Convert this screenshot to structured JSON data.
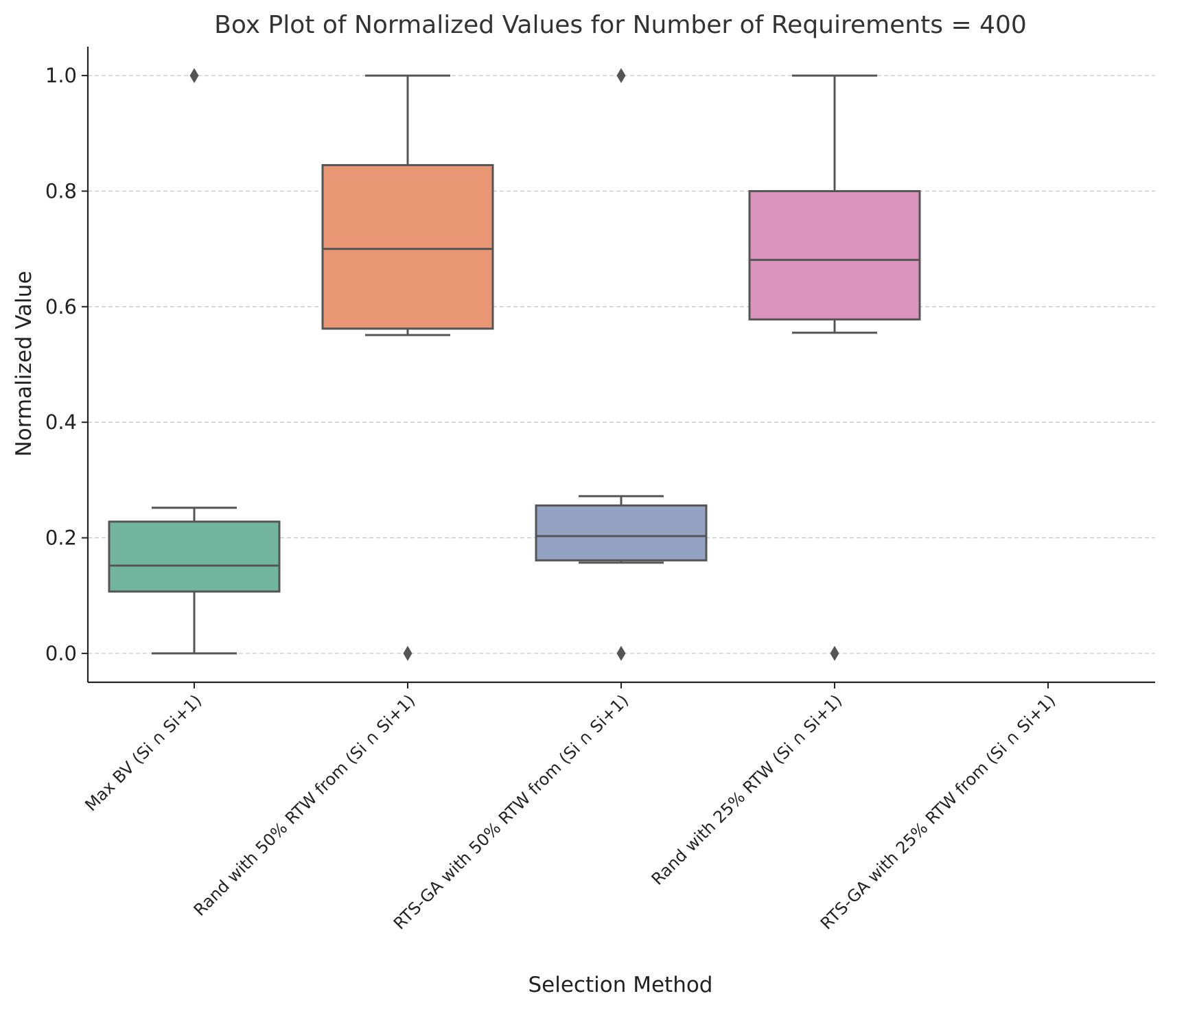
{
  "chart_data": {
    "type": "box",
    "title": "Box Plot of Normalized Values for Number of Requirements = 400",
    "xlabel": "Selection Method",
    "ylabel": "Normalized Value",
    "ylim": [
      -0.05,
      1.05
    ],
    "yticks": [
      0.0,
      0.2,
      0.4,
      0.6,
      0.8,
      1.0
    ],
    "ytick_labels": [
      "0.0",
      "0.2",
      "0.4",
      "0.6",
      "0.8",
      "1.0"
    ],
    "grid": "y-dashed",
    "categories": [
      "Max BV (Si ∩ Si+1)",
      "Rand with 50% RTW from (Si ∩ Si+1)",
      "RTS-GA with 50% RTW from (Si ∩ Si+1)",
      "Rand with 25% RTW (Si ∩ Si+1)",
      "RTS-GA with 25% RTW from (Si ∩ Si+1)"
    ],
    "boxes": [
      {
        "whisker_low": 0.0,
        "q1": 0.107,
        "median": 0.152,
        "q3": 0.228,
        "whisker_high": 0.252,
        "outliers": [
          1.0
        ],
        "color": "#72b59e"
      },
      {
        "whisker_low": 0.551,
        "q1": 0.562,
        "median": 0.7,
        "q3": 0.845,
        "whisker_high": 1.0,
        "outliers": [
          0.0
        ],
        "color": "#e89674"
      },
      {
        "whisker_low": 0.157,
        "q1": 0.161,
        "median": 0.203,
        "q3": 0.256,
        "whisker_high": 0.272,
        "outliers": [
          1.0,
          0.0
        ],
        "color": "#94a3c4"
      },
      {
        "whisker_low": 0.555,
        "q1": 0.578,
        "median": 0.681,
        "q3": 0.8,
        "whisker_high": 1.0,
        "outliers": [
          0.0
        ],
        "color": "#da94bd"
      },
      null
    ],
    "edge_color": "#555555"
  }
}
